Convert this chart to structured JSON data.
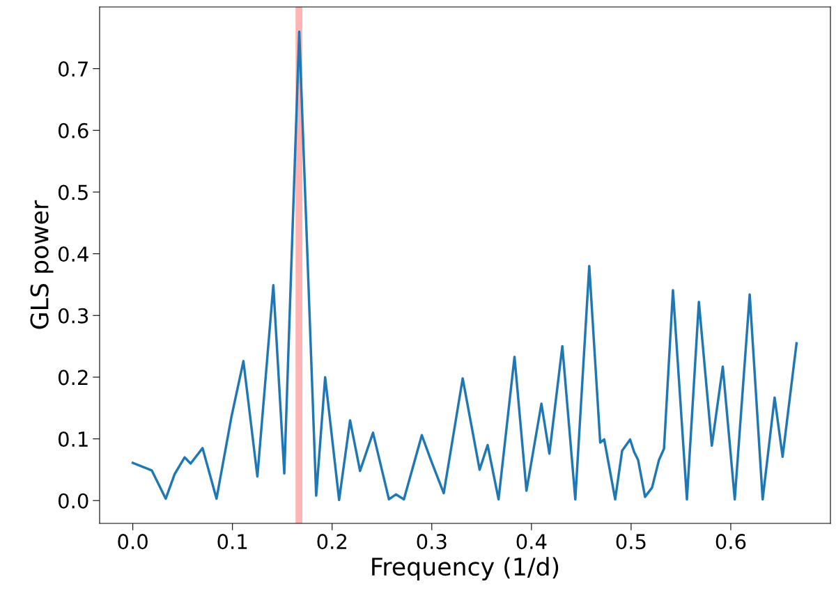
{
  "chart_data": {
    "type": "line",
    "xlabel": "Frequency (1/d)",
    "ylabel": "GLS power",
    "x": [
      0,
      0.019,
      0.033,
      0.042,
      0.052,
      0.058,
      0.07,
      0.084,
      0.099,
      0.111,
      0.125,
      0.141,
      0.152,
      0.167,
      0.184,
      0.193,
      0.207,
      0.218,
      0.228,
      0.241,
      0.257,
      0.264,
      0.272,
      0.29,
      0.299,
      0.312,
      0.331,
      0.348,
      0.356,
      0.367,
      0.383,
      0.395,
      0.41,
      0.418,
      0.431,
      0.444,
      0.458,
      0.469,
      0.473,
      0.484,
      0.491,
      0.499,
      0.503,
      0.507,
      0.514,
      0.521,
      0.528,
      0.533,
      0.542,
      0.556,
      0.568,
      0.581,
      0.592,
      0.604,
      0.619,
      0.632,
      0.644,
      0.652,
      0.666
    ],
    "series": [
      {
        "color": "#1f77b4",
        "values": [
          0.061,
          0.049,
          0.003,
          0.043,
          0.07,
          0.06,
          0.085,
          0.003,
          0.136,
          0.226,
          0.039,
          0.349,
          0.044,
          0.76,
          0.008,
          0.2,
          0.001,
          0.13,
          0.048,
          0.11,
          0.002,
          0.01,
          0.002,
          0.106,
          0.066,
          0.012,
          0.198,
          0.05,
          0.09,
          0.002,
          0.233,
          0.016,
          0.157,
          0.076,
          0.25,
          0.002,
          0.38,
          0.094,
          0.099,
          0.002,
          0.081,
          0.099,
          0.079,
          0.066,
          0.006,
          0.021,
          0.066,
          0.084,
          0.341,
          0.002,
          0.322,
          0.089,
          0.217,
          0.002,
          0.334,
          0.002,
          0.167,
          0.071,
          0.255
        ]
      }
    ],
    "ref_lines": [
      {
        "axis": "x",
        "value": 0.1667,
        "color": "#ffb3b3"
      }
    ],
    "xlim": [
      -0.0333,
      0.7
    ],
    "ylim": [
      -0.037,
      0.8
    ],
    "xticks": [
      {
        "value": 0,
        "label": "0.0"
      },
      {
        "value": 0.1,
        "label": "0.1"
      },
      {
        "value": 0.2,
        "label": "0.2"
      },
      {
        "value": 0.3,
        "label": "0.3"
      },
      {
        "value": 0.4,
        "label": "0.4"
      },
      {
        "value": 0.5,
        "label": "0.5"
      },
      {
        "value": 0.6,
        "label": "0.6"
      }
    ],
    "yticks": [
      {
        "value": 0,
        "label": "0.0"
      },
      {
        "value": 0.1,
        "label": "0.1"
      },
      {
        "value": 0.2,
        "label": "0.2"
      },
      {
        "value": 0.3,
        "label": "0.3"
      },
      {
        "value": 0.4,
        "label": "0.4"
      },
      {
        "value": 0.5,
        "label": "0.5"
      },
      {
        "value": 0.6,
        "label": "0.6"
      },
      {
        "value": 0.7,
        "label": "0.7"
      }
    ],
    "grid": false,
    "legend": false
  }
}
